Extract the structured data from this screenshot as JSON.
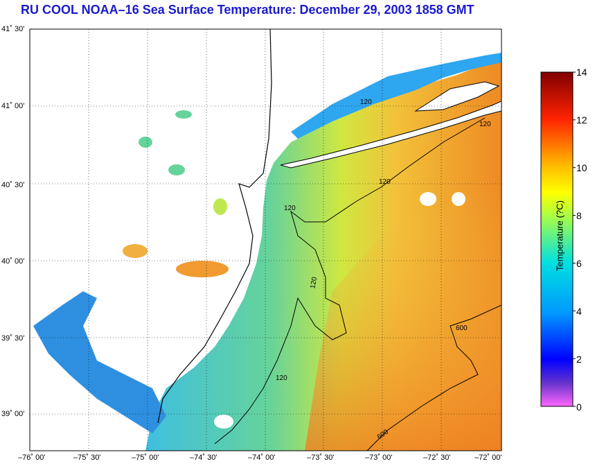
{
  "title": "RU COOL  NOAA–16  Sea Surface Temperature:  December 29, 2003 1858 GMT",
  "map": {
    "lat_labels": [
      "41˚ 30'",
      "41˚ 00'",
      "40˚ 30'",
      "40˚ 00'",
      "39˚ 30'",
      "39˚ 00'"
    ],
    "lon_labels": [
      "–76˚ 00'",
      "–75˚ 30'",
      "–75˚ 00'",
      "–74˚ 30'",
      "–74˚ 00'",
      "–73˚ 30'",
      "–73˚ 00'",
      "–72˚ 30'",
      "–72˚ 00'"
    ],
    "contour_labels": [
      "120",
      "120",
      "120",
      "120",
      "120",
      "120",
      "600",
      "600"
    ],
    "colors": {
      "land": "#ffffff",
      "grid": "#000000",
      "coast": "#000000"
    }
  },
  "colorbar": {
    "label": "Temperature (?C)",
    "ticks": [
      "14",
      "12",
      "10",
      "8",
      "6",
      "4",
      "2",
      "0"
    ],
    "min": 0,
    "max": 14
  }
}
